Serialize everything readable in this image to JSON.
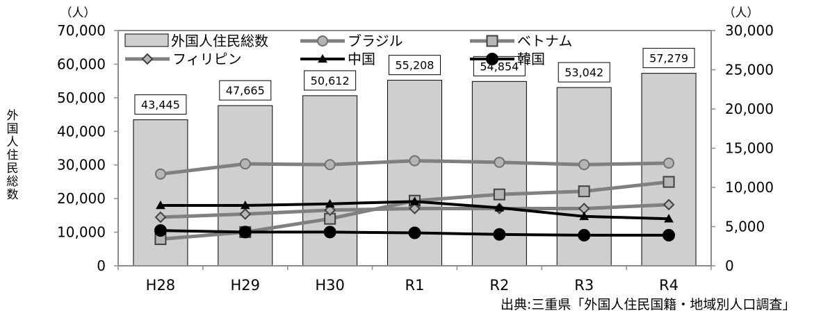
{
  "chart_data": {
    "type": "bar",
    "categories": [
      "H28",
      "H29",
      "H30",
      "R1",
      "R2",
      "R3",
      "R4"
    ],
    "left_axis": {
      "label": "外国人住民総数",
      "unit": "（人）",
      "ylim": [
        0,
        70000
      ],
      "ticks": [
        0,
        10000,
        20000,
        30000,
        40000,
        50000,
        60000,
        70000
      ],
      "tick_labels": [
        "0",
        "10,000",
        "20,000",
        "30,000",
        "40,000",
        "50,000",
        "60,000",
        "70,000"
      ]
    },
    "right_axis": {
      "unit": "（人）",
      "ylim": [
        0,
        30000
      ],
      "ticks": [
        0,
        5000,
        10000,
        15000,
        20000,
        25000,
        30000
      ],
      "tick_labels": [
        "0",
        "5,000",
        "10,000",
        "15,000",
        "20,000",
        "25,000",
        "30,000"
      ]
    },
    "bar_series": {
      "name": "外国人住民総数",
      "values": [
        43445,
        47665,
        50612,
        55208,
        54854,
        53042,
        57279
      ],
      "data_labels": [
        "43,445",
        "47,665",
        "50,612",
        "55,208",
        "54,854",
        "53,042",
        "57,279"
      ],
      "color": "#d0cfd0"
    },
    "line_series": [
      {
        "name": "ブラジル",
        "axis": "right",
        "marker": "circle",
        "color": "#808080",
        "values": [
          11700,
          13000,
          12900,
          13400,
          13200,
          12900,
          13100
        ]
      },
      {
        "name": "ベトナム",
        "axis": "right",
        "marker": "square",
        "color": "#808080",
        "values": [
          3400,
          4300,
          6000,
          8300,
          9100,
          9500,
          10700
        ]
      },
      {
        "name": "フィリピン",
        "axis": "right",
        "marker": "diamond",
        "color": "#808080",
        "values": [
          6200,
          6600,
          7100,
          7300,
          7300,
          7300,
          7800
        ]
      },
      {
        "name": "中国",
        "axis": "right",
        "marker": "triangle",
        "color": "#000000",
        "values": [
          7700,
          7700,
          7900,
          8200,
          7400,
          6300,
          6000
        ]
      },
      {
        "name": "韓国",
        "axis": "right",
        "marker": "circle",
        "color": "#000000",
        "values": [
          4500,
          4300,
          4300,
          4200,
          4000,
          3900,
          3900
        ]
      }
    ],
    "legend_position": "top",
    "grid": false
  },
  "source": "出典:三重県「外国人住民国籍・地域別人口調査」"
}
